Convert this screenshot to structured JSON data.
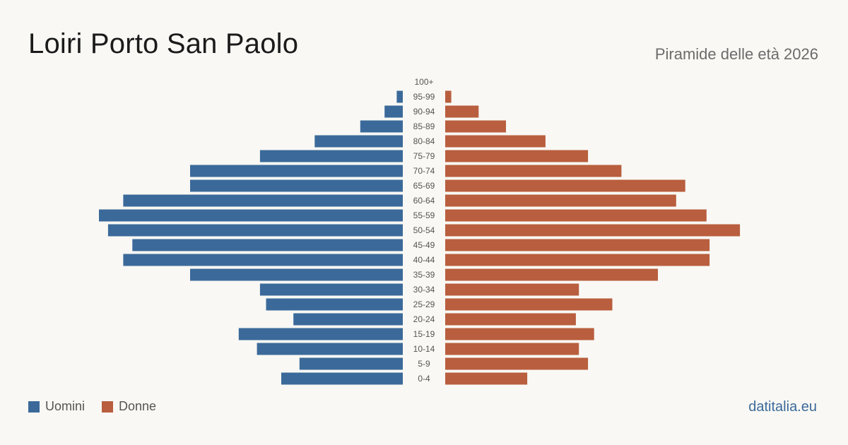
{
  "header": {
    "title": "Loiri Porto San Paolo",
    "subtitle": "Piramide delle età 2026"
  },
  "legend": {
    "men_label": "Uomini",
    "women_label": "Donne"
  },
  "source": "datitalia.eu",
  "colors": {
    "men": "#3b6a9a",
    "women": "#b95e3e",
    "background": "#f9f8f4"
  },
  "chart_data": {
    "type": "bar",
    "orientation": "horizontal-population-pyramid",
    "categories": [
      "100+",
      "95-99",
      "90-94",
      "85-89",
      "80-84",
      "75-79",
      "70-74",
      "65-69",
      "60-64",
      "55-59",
      "50-54",
      "45-49",
      "40-44",
      "35-39",
      "30-34",
      "25-29",
      "20-24",
      "15-19",
      "10-14",
      "5-9",
      "0-4"
    ],
    "series": [
      {
        "name": "Uomini",
        "values": [
          0,
          2,
          6,
          14,
          29,
          47,
          70,
          70,
          92,
          100,
          97,
          89,
          92,
          70,
          47,
          45,
          36,
          54,
          48,
          34,
          40
        ]
      },
      {
        "name": "Donne",
        "values": [
          0,
          2,
          11,
          20,
          33,
          47,
          58,
          79,
          76,
          86,
          97,
          87,
          87,
          70,
          44,
          55,
          43,
          49,
          44,
          47,
          27
        ]
      }
    ]
  }
}
